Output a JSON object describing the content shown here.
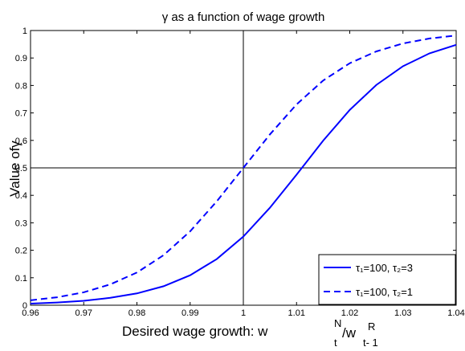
{
  "chart_data": {
    "type": "line",
    "title": "γ as a function of wage growth",
    "ylabel": "Value ofγ",
    "xlabel_parts": [
      "Desired wage growth: w",
      "N",
      "t",
      "/w",
      "R",
      "t- 1"
    ],
    "x": [
      0.96,
      0.965,
      0.97,
      0.975,
      0.98,
      0.985,
      0.99,
      0.995,
      1,
      1.005,
      1.01,
      1.015,
      1.02,
      1.025,
      1.03,
      1.035,
      1.04
    ],
    "series": [
      {
        "name": "τ₁=100,  τ₂=3",
        "color": "#0000ff",
        "dash": false,
        "values": [
          0.006,
          0.01,
          0.016,
          0.027,
          0.043,
          0.069,
          0.109,
          0.168,
          0.25,
          0.355,
          0.475,
          0.599,
          0.711,
          0.802,
          0.87,
          0.917,
          0.948
        ]
      },
      {
        "name": "τ₁=100,  τ₂=1",
        "color": "#0000ff",
        "dash": true,
        "values": [
          0.018,
          0.029,
          0.047,
          0.076,
          0.119,
          0.182,
          0.269,
          0.378,
          0.5,
          0.622,
          0.731,
          0.818,
          0.881,
          0.924,
          0.953,
          0.971,
          0.982
        ]
      }
    ],
    "xlim": [
      0.96,
      1.04
    ],
    "xticks": [
      0.96,
      0.97,
      0.98,
      0.99,
      1,
      1.01,
      1.02,
      1.03,
      1.04
    ],
    "ylim": [
      0,
      1
    ],
    "yticks": [
      0,
      0.1,
      0.2,
      0.3,
      0.4,
      0.5,
      0.6,
      0.7,
      0.8,
      0.9,
      1
    ],
    "vline": 1,
    "hline": 0.5,
    "legend": "lower right",
    "grid": false
  }
}
